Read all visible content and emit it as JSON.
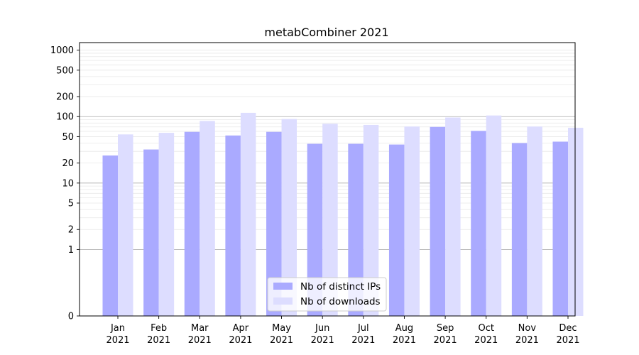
{
  "chart_data": {
    "type": "bar",
    "title": "metabCombiner 2021",
    "xlabel": "",
    "ylabel": "",
    "yscale": "symlog",
    "ylim": [
      0,
      1300
    ],
    "categories": [
      "Jan\n2021",
      "Feb\n2021",
      "Mar\n2021",
      "Apr\n2021",
      "May\n2021",
      "Jun\n2021",
      "Jul\n2021",
      "Aug\n2021",
      "Sep\n2021",
      "Oct\n2021",
      "Nov\n2021",
      "Dec\n2021"
    ],
    "series": [
      {
        "name": "Nb of distinct IPs",
        "color": "#aaaaff",
        "values": [
          26,
          32,
          59,
          52,
          59,
          39,
          39,
          38,
          70,
          61,
          40,
          42
        ]
      },
      {
        "name": "Nb of downloads",
        "color": "#ddddff",
        "values": [
          54,
          57,
          86,
          114,
          92,
          78,
          75,
          71,
          97,
          104,
          71,
          68
        ]
      }
    ],
    "yticks": [
      0,
      1,
      2,
      5,
      10,
      20,
      50,
      100,
      200,
      500,
      1000
    ],
    "ytick_labels": [
      "0",
      "1",
      "2",
      "5",
      "10",
      "20",
      "50",
      "100",
      "200",
      "500",
      "1000"
    ],
    "grid": true,
    "legend_position": "lower-center"
  }
}
